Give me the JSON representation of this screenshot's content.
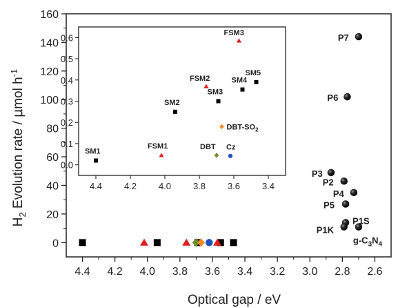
{
  "chart_data": [
    {
      "type": "scatter",
      "xlabel": "Optical gap / eV",
      "ylabel_parts": [
        "H",
        "2",
        " Evolution rate / ",
        "μ",
        "mol h",
        "-1"
      ],
      "xlim": [
        4.5,
        2.5
      ],
      "ylim": [
        -10,
        160
      ],
      "x_ticks": [
        "4.4",
        "4.2",
        "4.0",
        "3.8",
        "3.6",
        "3.4",
        "3.2",
        "3.0",
        "2.8",
        "2.6"
      ],
      "y_ticks": [
        "0",
        "20",
        "40",
        "60",
        "80",
        "100",
        "120",
        "140",
        "160"
      ],
      "grid": false,
      "series": [
        {
          "marker": "square",
          "color": "#000000",
          "points": [
            {
              "x": 4.4,
              "y": 0
            },
            {
              "x": 3.94,
              "y": 0
            },
            {
              "x": 3.69,
              "y": 0
            },
            {
              "x": 3.55,
              "y": 0
            },
            {
              "x": 3.47,
              "y": 0
            }
          ]
        },
        {
          "marker": "triangle",
          "color": "#e02020",
          "points": [
            {
              "x": 4.02,
              "y": 0
            },
            {
              "x": 3.76,
              "y": 0
            },
            {
              "x": 3.57,
              "y": 0
            }
          ]
        },
        {
          "marker": "diamond",
          "color": "#6b8e23",
          "points": [
            {
              "x": 3.7,
              "y": 0
            }
          ]
        },
        {
          "marker": "diamond",
          "color": "#f28c28",
          "points": [
            {
              "x": 3.67,
              "y": 0
            }
          ]
        },
        {
          "marker": "circle",
          "color": "#2255bb",
          "points": [
            {
              "x": 3.62,
              "y": 0
            }
          ]
        },
        {
          "marker": "sphere",
          "color": "#111111",
          "points": [
            {
              "x": 2.7,
              "y": 144,
              "label": "P7"
            },
            {
              "x": 2.77,
              "y": 102,
              "label": "P6"
            },
            {
              "x": 2.87,
              "y": 49,
              "label": "P3"
            },
            {
              "x": 2.79,
              "y": 43,
              "label": "P2"
            },
            {
              "x": 2.73,
              "y": 35,
              "label": "P4"
            },
            {
              "x": 2.78,
              "y": 27,
              "label": "P5"
            },
            {
              "x": 2.78,
              "y": 14,
              "label": "P1S"
            },
            {
              "x": 2.79,
              "y": 11,
              "label": "P1K"
            },
            {
              "x": 2.7,
              "y": 11,
              "label": "g-C3N4"
            }
          ]
        }
      ]
    },
    {
      "type": "scatter",
      "xlim": [
        4.5,
        3.3
      ],
      "ylim": [
        -0.05,
        0.65
      ],
      "x_ticks": [
        "4.4",
        "4.2",
        "4.0",
        "3.8",
        "3.6",
        "3.4"
      ],
      "y_ticks": [
        "0.0",
        "0.1",
        "0.2",
        "0.3",
        "0.4",
        "0.5",
        "0.6"
      ],
      "grid": false,
      "series": [
        {
          "marker": "square",
          "color": "#000000",
          "points": [
            {
              "x": 4.4,
              "y": 0.02,
              "label": "SM1"
            },
            {
              "x": 3.94,
              "y": 0.25,
              "label": "SM2"
            },
            {
              "x": 3.69,
              "y": 0.3,
              "label": "SM3"
            },
            {
              "x": 3.55,
              "y": 0.355,
              "label": "SM4"
            },
            {
              "x": 3.47,
              "y": 0.39,
              "label": "SM5"
            }
          ]
        },
        {
          "marker": "triangle",
          "color": "#e02020",
          "points": [
            {
              "x": 4.02,
              "y": 0.045,
              "label": "FSM1"
            },
            {
              "x": 3.76,
              "y": 0.37,
              "label": "FSM2"
            },
            {
              "x": 3.57,
              "y": 0.585,
              "label": "FSM3"
            }
          ]
        },
        {
          "marker": "diamond",
          "color": "#6b8e23",
          "points": [
            {
              "x": 3.7,
              "y": 0.045,
              "label": "DBT"
            }
          ]
        },
        {
          "marker": "diamond",
          "color": "#f28c28",
          "points": [
            {
              "x": 3.67,
              "y": 0.18,
              "label_parts": [
                "DBT-SO",
                "2"
              ]
            }
          ]
        },
        {
          "marker": "circle",
          "color": "#2255bb",
          "points": [
            {
              "x": 3.62,
              "y": 0.042,
              "label": "Cz"
            }
          ]
        }
      ]
    }
  ]
}
